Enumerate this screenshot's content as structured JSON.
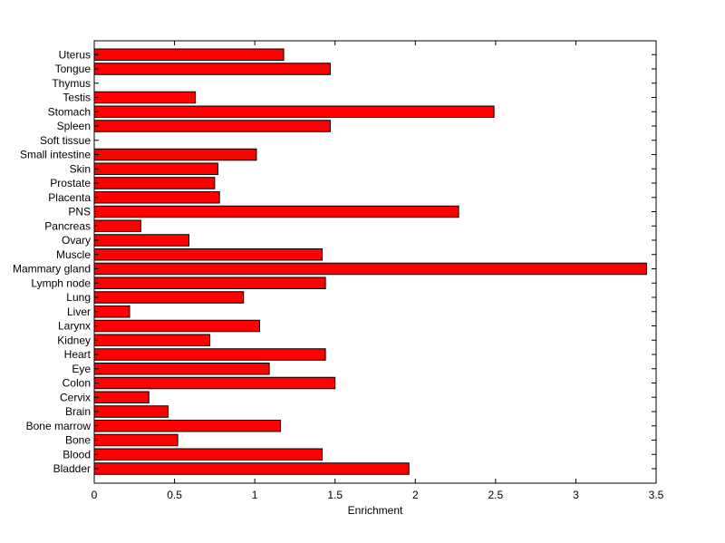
{
  "chart_data": {
    "type": "bar",
    "orientation": "horizontal",
    "categories": [
      "Bladder",
      "Blood",
      "Bone",
      "Bone marrow",
      "Brain",
      "Cervix",
      "Colon",
      "Eye",
      "Heart",
      "Kidney",
      "Larynx",
      "Liver",
      "Lung",
      "Lymph node",
      "Mammary gland",
      "Muscle",
      "Ovary",
      "Pancreas",
      "PNS",
      "Placenta",
      "Prostate",
      "Skin",
      "Small intestine",
      "Soft tissue",
      "Spleen",
      "Stomach",
      "Testis",
      "Thymus",
      "Tongue",
      "Uterus"
    ],
    "values": [
      1.96,
      1.42,
      0.52,
      1.16,
      0.46,
      0.34,
      1.5,
      1.09,
      1.44,
      0.72,
      1.03,
      0.22,
      0.93,
      1.44,
      3.44,
      1.42,
      0.59,
      0.29,
      2.27,
      0.78,
      0.75,
      0.77,
      1.01,
      0,
      1.47,
      2.49,
      0.63,
      0,
      1.47,
      1.18
    ],
    "title": "",
    "xlabel": "Enrichment",
    "ylabel": "",
    "xlim": [
      0,
      3.5
    ],
    "xticks": [
      "0",
      "0.5",
      "1",
      "1.5",
      "2",
      "2.5",
      "3",
      "3.5"
    ],
    "bar_color": "#ff0000",
    "grid": false
  }
}
